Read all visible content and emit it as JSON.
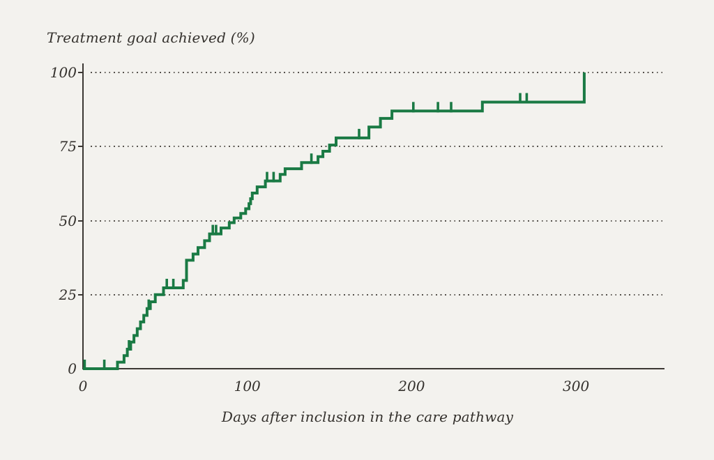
{
  "page": {
    "background": "#f3f2ee"
  },
  "chart_data": {
    "type": "line",
    "line_style": "step-after (Kaplan-Meier style cumulative incidence, with censoring tick marks)",
    "title": "Treatment goal achieved (%)",
    "xlabel": "Days after inclusion in the care pathway",
    "ylabel": "Treatment goal achieved (%)",
    "x_ticks": [
      0,
      100,
      200,
      300
    ],
    "y_ticks": [
      0,
      25,
      50,
      75,
      100
    ],
    "xlim": [
      0,
      354
    ],
    "ylim": [
      0,
      100
    ],
    "grid": "horizontal dotted gridlines at y = 25, 50, 75, 100; legend: none",
    "series": [
      {
        "name": "Treatment goal achieved",
        "color": "#1a7a44",
        "steps_day_percent": [
          [
            21,
            2.2
          ],
          [
            25,
            4.4
          ],
          [
            27,
            6.6
          ],
          [
            29,
            9.0
          ],
          [
            31,
            11.2
          ],
          [
            33,
            13.5
          ],
          [
            35,
            15.8
          ],
          [
            37,
            18.0
          ],
          [
            39,
            20.3
          ],
          [
            41,
            22.6
          ],
          [
            44,
            25.0
          ],
          [
            49,
            27.3
          ],
          [
            61,
            29.8
          ],
          [
            63,
            36.6
          ],
          [
            67,
            38.7
          ],
          [
            70,
            40.9
          ],
          [
            74,
            43.2
          ],
          [
            77,
            45.5
          ],
          [
            84,
            47.5
          ],
          [
            89,
            49.3
          ],
          [
            92,
            50.9
          ],
          [
            96,
            52.4
          ],
          [
            99,
            54.0
          ],
          [
            101,
            55.7
          ],
          [
            102,
            57.4
          ],
          [
            103,
            59.3
          ],
          [
            106,
            61.4
          ],
          [
            111,
            63.4
          ],
          [
            120,
            65.6
          ],
          [
            123,
            67.5
          ],
          [
            133,
            69.6
          ],
          [
            143,
            71.6
          ],
          [
            146,
            73.4
          ],
          [
            150,
            75.5
          ],
          [
            154,
            77.9
          ],
          [
            174,
            81.6
          ],
          [
            181,
            84.5
          ],
          [
            188,
            87.0
          ],
          [
            243,
            90.0
          ],
          [
            305,
            100.0
          ]
        ],
        "censoring_ticks_day_percent": [
          [
            1,
            0
          ],
          [
            13,
            0
          ],
          [
            28,
            6.6
          ],
          [
            40,
            20.3
          ],
          [
            51,
            27.3
          ],
          [
            55,
            27.3
          ],
          [
            79,
            45.5
          ],
          [
            81,
            45.5
          ],
          [
            112,
            63.4
          ],
          [
            116,
            63.4
          ],
          [
            139,
            69.6
          ],
          [
            168,
            77.9
          ],
          [
            201,
            87.0
          ],
          [
            216,
            87.0
          ],
          [
            224,
            87.0
          ],
          [
            266,
            90.0
          ],
          [
            270,
            90.0
          ]
        ]
      }
    ]
  },
  "colors": {
    "background": "#f3f2ee",
    "curve": "#1a7a44",
    "axis": "#3b3733",
    "grid_dots": "#55514c",
    "text": "#33302c"
  }
}
